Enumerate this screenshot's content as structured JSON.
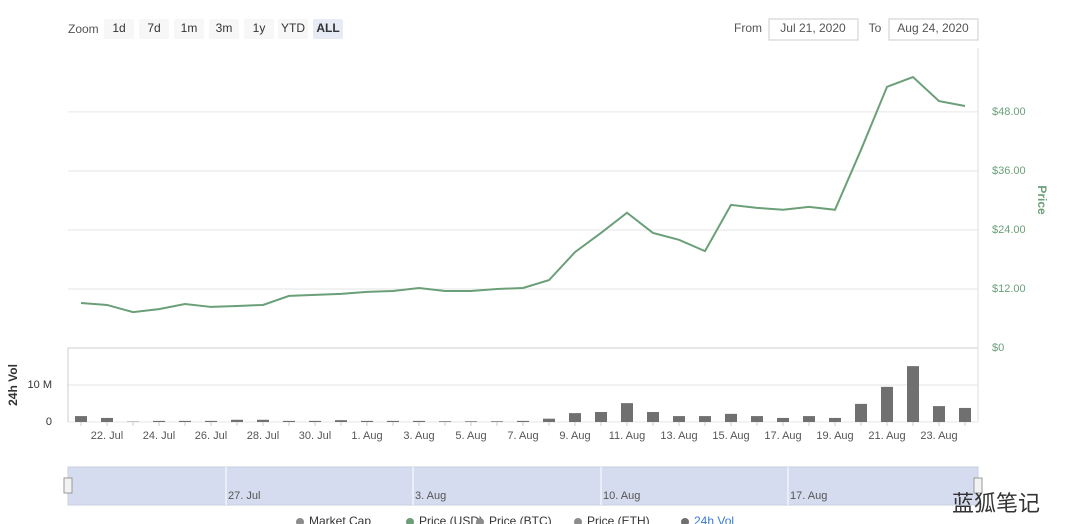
{
  "toolbar": {
    "zoom_label": "Zoom",
    "zoom_buttons": [
      "1d",
      "7d",
      "1m",
      "3m",
      "1y",
      "YTD",
      "ALL"
    ],
    "active_index": 6,
    "from_label": "From",
    "from": "Jul 21, 2020",
    "to_label": "To",
    "to": "Aug 24, 2020"
  },
  "chart_data": [
    {
      "type": "line",
      "y_label": "Price",
      "series": [
        {
          "name": "Price",
          "color": "#6a9f78",
          "values": [
            9.15,
            8.75,
            7.3,
            7.9,
            8.95,
            8.35,
            8.55,
            8.75,
            10.6,
            10.8,
            11.0,
            11.4,
            11.6,
            12.2,
            11.6,
            11.6,
            12.0,
            12.2,
            13.8,
            19.5,
            23.4,
            27.5,
            23.4,
            22.0,
            19.7,
            29.1,
            28.5,
            28.1,
            28.7,
            28.1,
            40.3,
            53.1,
            55.1,
            50.2,
            49.2
          ]
        }
      ],
      "ylim": [
        0,
        61
      ],
      "yticks": [
        {
          "value": 0,
          "label": "$0"
        },
        {
          "value": 12,
          "label": "$12.00"
        },
        {
          "value": 24,
          "label": "$24.00"
        },
        {
          "value": 36,
          "label": "$36.00"
        },
        {
          "value": 48,
          "label": "$48.00"
        }
      ],
      "grid": true
    },
    {
      "type": "bar",
      "y_label": "24h Vol",
      "categories": [
        null,
        "22. Jul",
        null,
        "24. Jul",
        null,
        "26. Jul",
        null,
        "28. Jul",
        null,
        "30. Jul",
        null,
        "1. Aug",
        null,
        "3. Aug",
        null,
        "5. Aug",
        null,
        "7. Aug",
        null,
        "9. Aug",
        null,
        "11. Aug",
        null,
        "13. Aug",
        null,
        "15. Aug",
        null,
        "17. Aug",
        null,
        "19. Aug",
        null,
        "21. Aug",
        null,
        "23. Aug",
        null
      ],
      "values": [
        1.6,
        1.1,
        0.1,
        0.3,
        0.3,
        0.3,
        0.6,
        0.6,
        0.3,
        0.3,
        0.5,
        0.3,
        0.3,
        0.3,
        0.2,
        0.2,
        0.2,
        0.3,
        0.9,
        2.4,
        2.7,
        5.1,
        2.7,
        1.6,
        1.6,
        2.2,
        1.6,
        1.1,
        1.6,
        1.1,
        4.9,
        9.5,
        15.1,
        4.3,
        3.8
      ],
      "color": "#707070",
      "ylim": [
        0,
        20
      ],
      "yticks": [
        0,
        {
          "value": 10,
          "label": "10 M"
        }
      ],
      "grid": true
    }
  ],
  "navigator": {
    "labels": [
      "27. Jul",
      "3. Aug",
      "10. Aug",
      "17. Aug"
    ]
  },
  "legend": [
    {
      "name": "Market Cap",
      "color": "#8c8c8c"
    },
    {
      "name": "Price (USD)",
      "color": "#6a9f78"
    },
    {
      "name": "Price (BTC)",
      "color": "#8c8c8c"
    },
    {
      "name": "Price (ETH)",
      "color": "#8c8c8c"
    },
    {
      "name": "24h Vol",
      "color": "#707070"
    }
  ],
  "watermark": "蓝狐笔记"
}
